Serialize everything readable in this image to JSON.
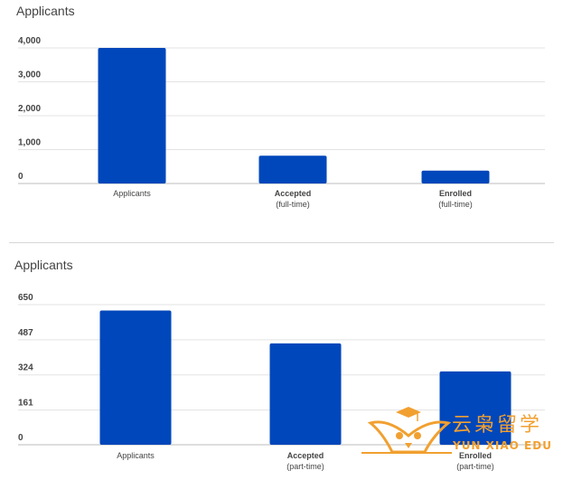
{
  "chart_data": [
    {
      "type": "bar",
      "title": "Applicants",
      "categories": [
        "Applicants",
        "Accepted\n(full-time)",
        "Enrolled\n(full-time)"
      ],
      "category_labels": [
        {
          "main": "Applicants",
          "sub": ""
        },
        {
          "main": "Accepted",
          "sub": "(full-time)"
        },
        {
          "main": "Enrolled",
          "sub": "(full-time)"
        }
      ],
      "values": [
        4000,
        820,
        380
      ],
      "ylim": [
        0,
        4000
      ],
      "yticks": [
        "0",
        "1,000",
        "2,000",
        "3,000",
        "4,000"
      ],
      "ytick_values": [
        0,
        1000,
        2000,
        3000,
        4000
      ],
      "bar_color": "#0047BB",
      "grid": true
    },
    {
      "type": "bar",
      "title": "Applicants",
      "categories": [
        "Applicants",
        "Accepted\n(part-time)",
        "Enrolled\n(part-time)"
      ],
      "category_labels": [
        {
          "main": "Applicants",
          "sub": ""
        },
        {
          "main": "Accepted",
          "sub": "(part-time)"
        },
        {
          "main": "Enrolled",
          "sub": "(part-time)"
        }
      ],
      "values": [
        623,
        470,
        340
      ],
      "ylim": [
        0,
        650
      ],
      "yticks": [
        "0",
        "161",
        "324",
        "487",
        "650"
      ],
      "ytick_values": [
        0,
        161,
        324,
        487,
        650
      ],
      "bar_color": "#0047BB",
      "grid": true
    }
  ],
  "watermark": {
    "text_cn": "云枭留学",
    "text_en": "YUN XIAO EDU",
    "color": "#F1A030"
  }
}
